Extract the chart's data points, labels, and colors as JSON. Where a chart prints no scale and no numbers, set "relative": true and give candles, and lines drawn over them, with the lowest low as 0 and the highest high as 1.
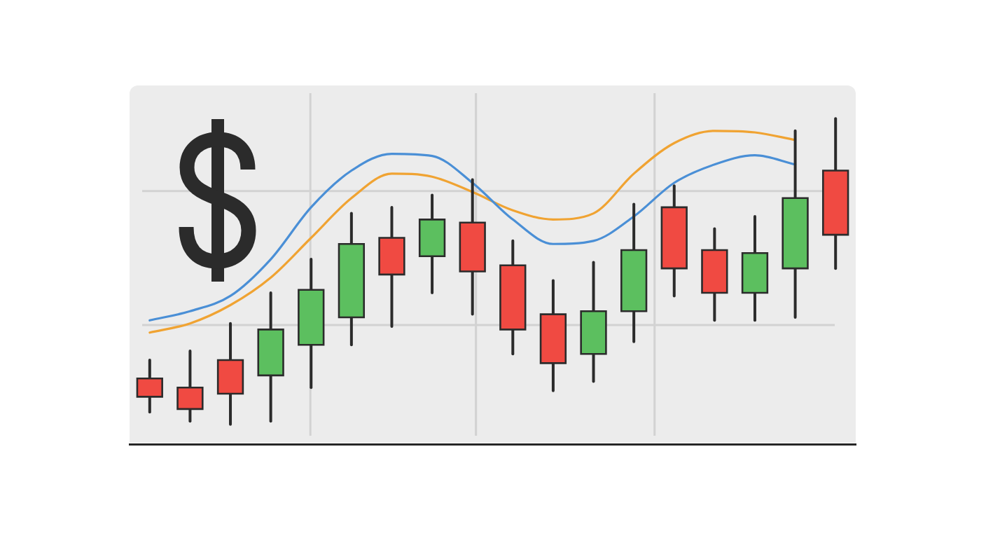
{
  "chart_data": {
    "type": "candlestick",
    "relative": true,
    "categories": [
      null,
      null,
      null,
      null,
      null,
      null,
      null,
      null,
      null,
      null,
      null,
      null,
      null,
      null,
      null,
      null,
      null,
      null
    ],
    "ohlc": [
      [
        0.15,
        0.21,
        0.04,
        0.09
      ],
      [
        0.12,
        0.24,
        0.01,
        0.05
      ],
      [
        0.21,
        0.33,
        0.0,
        0.1
      ],
      [
        0.16,
        0.43,
        0.01,
        0.31
      ],
      [
        0.26,
        0.54,
        0.12,
        0.44
      ],
      [
        0.35,
        0.69,
        0.26,
        0.59
      ],
      [
        0.61,
        0.71,
        0.32,
        0.49
      ],
      [
        0.55,
        0.75,
        0.43,
        0.67
      ],
      [
        0.66,
        0.8,
        0.36,
        0.5
      ],
      [
        0.52,
        0.6,
        0.23,
        0.31
      ],
      [
        0.36,
        0.47,
        0.11,
        0.2
      ],
      [
        0.23,
        0.53,
        0.14,
        0.37
      ],
      [
        0.37,
        0.72,
        0.27,
        0.57
      ],
      [
        0.71,
        0.78,
        0.42,
        0.51
      ],
      [
        0.57,
        0.64,
        0.34,
        0.43
      ],
      [
        0.43,
        0.68,
        0.34,
        0.56
      ],
      [
        0.51,
        0.96,
        0.35,
        0.74
      ],
      [
        0.83,
        1.0,
        0.51,
        0.62
      ]
    ],
    "colors": [
      "#f04a42",
      "#f04a42",
      "#f04a42",
      "#5cbf5f",
      "#5cbf5f",
      "#5cbf5f",
      "#f04a42",
      "#5cbf5f",
      "#f04a42",
      "#f04a42",
      "#f04a42",
      "#5cbf5f",
      "#5cbf5f",
      "#f04a42",
      "#f04a42",
      "#5cbf5f",
      "#5cbf5f",
      "#f04a42"
    ],
    "series": [
      {
        "type": "line",
        "color": "#4a8fd6",
        "values": [
          0.34,
          0.37,
          0.42,
          0.54,
          0.71,
          0.83,
          0.885,
          0.878,
          0.79,
          0.67,
          0.59,
          0.6,
          0.68,
          0.79,
          0.85,
          0.88,
          0.85,
          null
        ]
      },
      {
        "type": "line",
        "color": "#f0a332",
        "values": [
          0.3,
          0.33,
          0.39,
          0.48,
          0.61,
          0.74,
          0.82,
          0.81,
          0.76,
          0.7,
          0.67,
          0.69,
          0.82,
          0.92,
          0.96,
          0.955,
          0.93,
          null
        ]
      }
    ],
    "grid": true
  }
}
